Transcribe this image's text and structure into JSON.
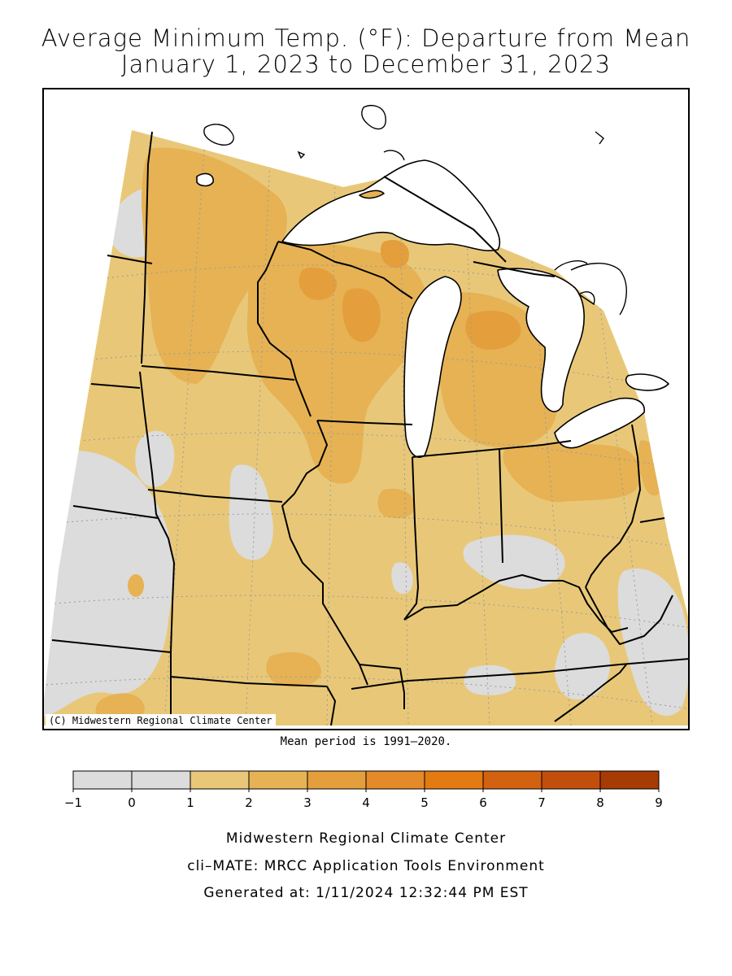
{
  "title": {
    "line1": "Average Minimum Temp. (°F): Departure from Mean",
    "line2": "January 1, 2023 to December 31, 2023"
  },
  "map": {
    "copyright": "(C) Midwestern Regional Climate Center",
    "region": "Midwest United States",
    "lake_color": "#ffffff",
    "state_line_color": "#000000",
    "grid_line_color": "#9a9a9a"
  },
  "mean_period": "Mean period is 1991–2020.",
  "legend": {
    "ticks": [
      "−1",
      "0",
      "1",
      "2",
      "3",
      "4",
      "5",
      "6",
      "7",
      "8",
      "9"
    ],
    "colors": [
      "#dcdcdc",
      "#dcdcdc",
      "#e8c878",
      "#e6b254",
      "#e49f3c",
      "#e48a28",
      "#e47a12",
      "#d26210",
      "#c24e0c",
      "#a63c04"
    ]
  },
  "anomaly_colors": {
    "near_zero": "#dcdcdc",
    "one_to_two": "#e8c878",
    "two_to_three": "#e6b254",
    "three_to_four": "#e49f3c"
  },
  "footer": {
    "line1": "Midwestern Regional Climate Center",
    "line2": "cli–MATE: MRCC Application Tools Environment",
    "line3": "Generated at: 1/11/2024 12:32:44 PM EST"
  }
}
